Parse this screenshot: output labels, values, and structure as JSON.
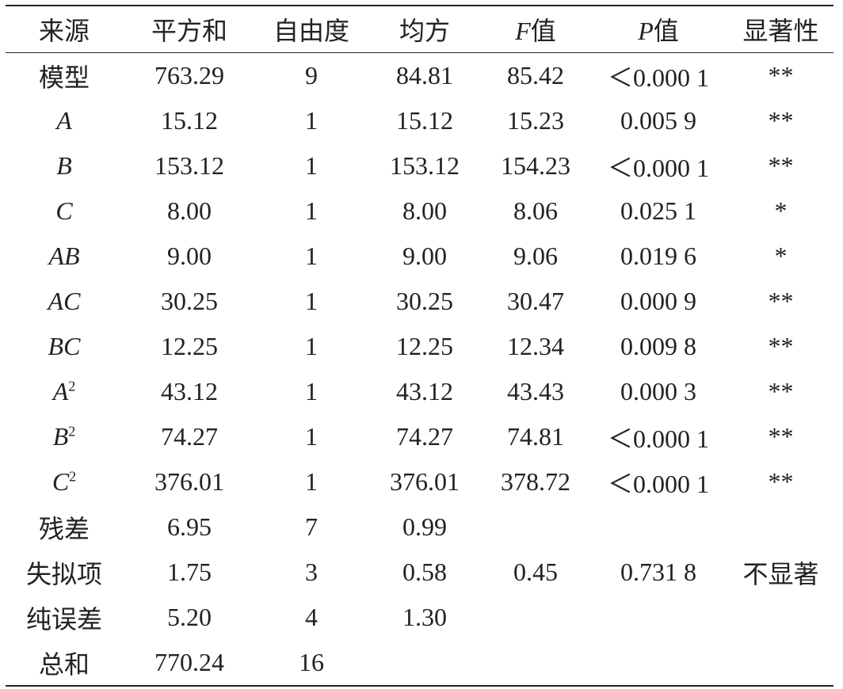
{
  "table": {
    "columns": [
      {
        "key": "source",
        "label": "来源"
      },
      {
        "key": "ss",
        "label": "平方和"
      },
      {
        "key": "df",
        "label": "自由度"
      },
      {
        "key": "ms",
        "label": "均方"
      },
      {
        "key": "f",
        "label": "值",
        "italic_prefix": "F"
      },
      {
        "key": "p",
        "label": "值",
        "italic_prefix": "P"
      },
      {
        "key": "sig",
        "label": "显著性"
      }
    ],
    "rows": [
      {
        "source": "模型",
        "source_italic": false,
        "ss": "763.29",
        "df": "9",
        "ms": "84.81",
        "f": "85.42",
        "p": "＜0.000 1",
        "sig": "**"
      },
      {
        "source": "A",
        "source_italic": true,
        "ss": "15.12",
        "df": "1",
        "ms": "15.12",
        "f": "15.23",
        "p": "0.005 9",
        "sig": "**"
      },
      {
        "source": "B",
        "source_italic": true,
        "ss": "153.12",
        "df": "1",
        "ms": "153.12",
        "f": "154.23",
        "p": "＜0.000 1",
        "sig": "**"
      },
      {
        "source": "C",
        "source_italic": true,
        "ss": "8.00",
        "df": "1",
        "ms": "8.00",
        "f": "8.06",
        "p": "0.025 1",
        "sig": "*"
      },
      {
        "source": "AB",
        "source_italic": true,
        "ss": "9.00",
        "df": "1",
        "ms": "9.00",
        "f": "9.06",
        "p": "0.019 6",
        "sig": "*"
      },
      {
        "source": "AC",
        "source_italic": true,
        "ss": "30.25",
        "df": "1",
        "ms": "30.25",
        "f": "30.47",
        "p": "0.000 9",
        "sig": "**"
      },
      {
        "source": "BC",
        "source_italic": true,
        "ss": "12.25",
        "df": "1",
        "ms": "12.25",
        "f": "12.34",
        "p": "0.009 8",
        "sig": "**"
      },
      {
        "source": "A",
        "source_sup": "2",
        "source_italic": true,
        "ss": "43.12",
        "df": "1",
        "ms": "43.12",
        "f": "43.43",
        "p": "0.000 3",
        "sig": "**"
      },
      {
        "source": "B",
        "source_sup": "2",
        "source_italic": true,
        "ss": "74.27",
        "df": "1",
        "ms": "74.27",
        "f": "74.81",
        "p": "＜0.000 1",
        "sig": "**"
      },
      {
        "source": "C",
        "source_sup": "2",
        "source_italic": true,
        "ss": "376.01",
        "df": "1",
        "ms": "376.01",
        "f": "378.72",
        "p": "＜0.000 1",
        "sig": "**"
      },
      {
        "source": "残差",
        "source_italic": false,
        "ss": "6.95",
        "df": "7",
        "ms": "0.99",
        "f": "",
        "p": "",
        "sig": ""
      },
      {
        "source": "失拟项",
        "source_italic": false,
        "ss": "1.75",
        "df": "3",
        "ms": "0.58",
        "f": "0.45",
        "p": "0.731 8",
        "sig": "不显著"
      },
      {
        "source": "纯误差",
        "source_italic": false,
        "ss": "5.20",
        "df": "4",
        "ms": "1.30",
        "f": "",
        "p": "",
        "sig": ""
      },
      {
        "source": "总和",
        "source_italic": false,
        "ss": "770.24",
        "df": "16",
        "ms": "",
        "f": "",
        "p": "",
        "sig": ""
      }
    ]
  }
}
